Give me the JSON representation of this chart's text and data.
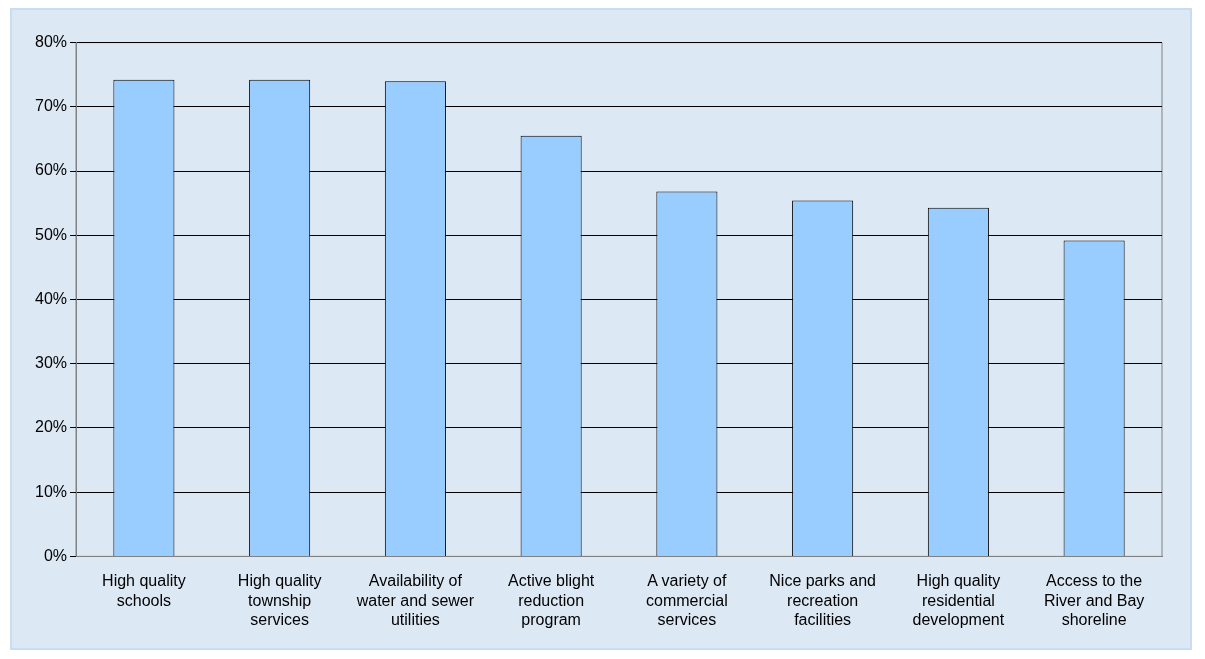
{
  "chart_data": {
    "type": "bar",
    "categories": [
      "High quality schools",
      "High quality township services",
      "Availability of water and sewer utilities",
      "Active blight reduction program",
      "A variety of commercial services",
      "Nice parks and recreation facilities",
      "High quality residential development",
      "Access to the River and Bay shoreline"
    ],
    "values": [
      74.2,
      74.2,
      74.0,
      65.5,
      56.8,
      55.4,
      54.3,
      49.2
    ],
    "color": "#99ccff",
    "ylim": [
      0,
      80
    ],
    "yticks": [
      {
        "value": 0,
        "label": "0%"
      },
      {
        "value": 10,
        "label": "10%"
      },
      {
        "value": 20,
        "label": "20%"
      },
      {
        "value": 30,
        "label": "30%"
      },
      {
        "value": 40,
        "label": "40%"
      },
      {
        "value": 50,
        "label": "50%"
      },
      {
        "value": 60,
        "label": "60%"
      },
      {
        "value": 70,
        "label": "70%"
      },
      {
        "value": 80,
        "label": "80%"
      }
    ],
    "grid": "y"
  }
}
